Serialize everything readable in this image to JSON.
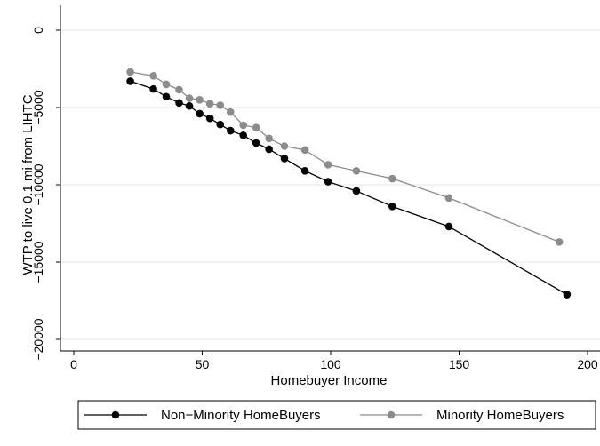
{
  "chart_data": {
    "type": "line",
    "xlabel": "Homebuyer Income",
    "ylabel": "WTP to live 0.1 mi from LIHTC",
    "xlim": [
      -5,
      200
    ],
    "ylim": [
      -20000,
      0
    ],
    "x_ticks": [
      0,
      50,
      100,
      150,
      200
    ],
    "y_ticks": [
      0,
      -5000,
      -10000,
      -15000,
      -20000
    ],
    "x_tick_labels": [
      "0",
      "50",
      "100",
      "150",
      "200"
    ],
    "y_tick_labels": [
      "0",
      "−5000",
      "−10000",
      "−15000",
      "−20000"
    ],
    "grid": "horizontal",
    "legend_position": "bottom",
    "series": [
      {
        "name": "Non−Minority HomeBuyers",
        "color": "#000000",
        "points": [
          [
            22,
            -3300
          ],
          [
            31,
            -3800
          ],
          [
            36,
            -4300
          ],
          [
            41,
            -4700
          ],
          [
            45,
            -4900
          ],
          [
            49,
            -5400
          ],
          [
            53,
            -5700
          ],
          [
            57,
            -6100
          ],
          [
            61,
            -6500
          ],
          [
            66,
            -6800
          ],
          [
            71,
            -7300
          ],
          [
            76,
            -7700
          ],
          [
            82,
            -8300
          ],
          [
            90,
            -9100
          ],
          [
            99,
            -9800
          ],
          [
            110,
            -10400
          ],
          [
            124,
            -11400
          ],
          [
            146,
            -12700
          ],
          [
            192,
            -17100
          ]
        ]
      },
      {
        "name": "Minority HomeBuyers",
        "color": "#8c8c8c",
        "points": [
          [
            22,
            -2700
          ],
          [
            31,
            -2950
          ],
          [
            36,
            -3500
          ],
          [
            41,
            -3850
          ],
          [
            45,
            -4400
          ],
          [
            49,
            -4500
          ],
          [
            53,
            -4750
          ],
          [
            57,
            -4850
          ],
          [
            61,
            -5300
          ],
          [
            66,
            -6150
          ],
          [
            71,
            -6300
          ],
          [
            76,
            -7000
          ],
          [
            82,
            -7500
          ],
          [
            90,
            -7750
          ],
          [
            99,
            -8700
          ],
          [
            110,
            -9100
          ],
          [
            124,
            -9600
          ],
          [
            146,
            -10850
          ],
          [
            189,
            -13700
          ]
        ]
      }
    ]
  }
}
